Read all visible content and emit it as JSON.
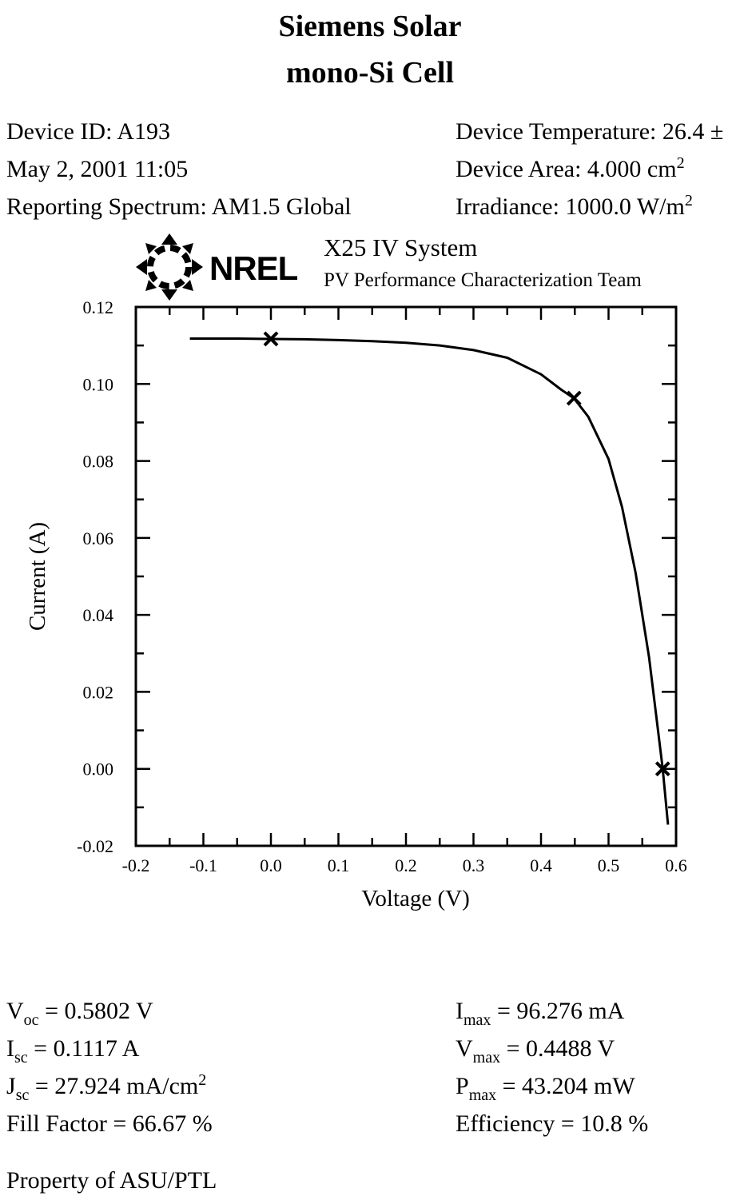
{
  "title_line1": "Siemens Solar",
  "title_line2": "mono-Si Cell",
  "device": {
    "id": "Device ID: A193",
    "date": "May 2, 2001 11:05",
    "spectrum": "Reporting Spectrum: AM1.5 Global",
    "temperature": "Device Temperature: 26.4 ±",
    "area_label": "Device Area: 4.000 cm",
    "area_exp": "2",
    "irradiance_label": "Irradiance: 1000.0 W/m",
    "irradiance_exp": "2"
  },
  "header": {
    "logo_text": "NREL",
    "system": "X25 IV System",
    "team": "PV Performance Characterization Team"
  },
  "chart_data": {
    "type": "line",
    "xlabel": "Voltage (V)",
    "ylabel": "Current (A)",
    "xlim": [
      -0.2,
      0.6
    ],
    "ylim": [
      -0.02,
      0.12
    ],
    "x_ticks": [
      "-0.2",
      "-0.1",
      "0.0",
      "0.1",
      "0.2",
      "0.3",
      "0.4",
      "0.5",
      "0.6"
    ],
    "y_ticks": [
      "0.12",
      "0.10",
      "0.08",
      "0.06",
      "0.04",
      "0.02",
      "0.00",
      "-0.02"
    ],
    "grid": false,
    "series": [
      {
        "x": [
          -0.12,
          -0.05,
          0.0,
          0.05,
          0.1,
          0.15,
          0.2,
          0.25,
          0.3,
          0.35,
          0.4,
          0.43,
          0.4488,
          0.47,
          0.5,
          0.52,
          0.54,
          0.56,
          0.5802,
          0.588
        ],
        "y": [
          0.1118,
          0.1118,
          0.1117,
          0.1116,
          0.1114,
          0.1111,
          0.1107,
          0.11,
          0.1088,
          0.1068,
          0.1025,
          0.0985,
          0.0963,
          0.0915,
          0.0805,
          0.068,
          0.051,
          0.029,
          0.0,
          -0.0145
        ]
      }
    ],
    "markers": [
      {
        "x": 0.0,
        "y": 0.1117
      },
      {
        "x": 0.4488,
        "y": 0.0963
      },
      {
        "x": 0.5802,
        "y": 0.0
      }
    ]
  },
  "results": {
    "voc_main": "V",
    "voc_sub": "oc",
    "voc_value": " = 0.5802 V",
    "isc_main": "I",
    "isc_sub": "sc",
    "isc_value": " = 0.1117 A",
    "jsc_main": "J",
    "jsc_sub": "sc",
    "jsc_value": " = 27.924 mA/cm",
    "jsc_exp": "2",
    "fill_factor": "Fill Factor = 66.67 %",
    "imax_main": "I",
    "imax_sub": "max",
    "imax_value": " = 96.276 mA",
    "vmax_main": "V",
    "vmax_sub": "max",
    "vmax_value": " = 0.4488 V",
    "pmax_main": "P",
    "pmax_sub": "max",
    "pmax_value": " = 43.204 mW",
    "efficiency": "Efficiency = 10.8 %"
  },
  "footer": "Property of ASU/PTL"
}
